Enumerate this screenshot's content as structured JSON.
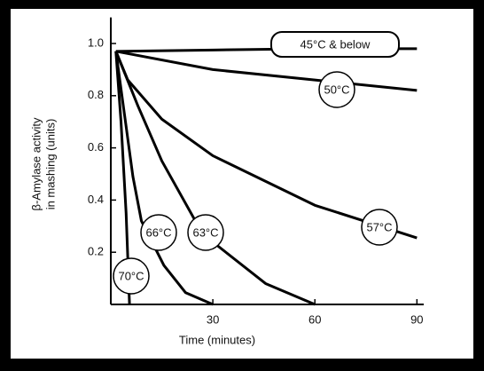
{
  "chart_data": {
    "type": "line",
    "y_label": [
      "β-Amylase activity",
      "in mashing (units)"
    ],
    "x_label": "Time (minutes)",
    "xlim": [
      0,
      92
    ],
    "ylim": [
      0,
      1.1
    ],
    "xticks": [
      30,
      60,
      90
    ],
    "yticks": [
      0.2,
      0.4,
      0.6,
      0.8,
      {
        "value": 1,
        "label": "1.0"
      }
    ],
    "color": "#000000",
    "series": [
      {
        "name": "45°C & below",
        "x": [
          1.5,
          30,
          60,
          90
        ],
        "values": [
          0.97,
          0.975,
          0.98,
          0.98
        ]
      },
      {
        "name": "50°C",
        "x": [
          1.5,
          30,
          60,
          90
        ],
        "values": [
          0.97,
          0.9,
          0.86,
          0.82
        ]
      },
      {
        "name": "57°C",
        "x": [
          1.5,
          5,
          15,
          30,
          60,
          90
        ],
        "values": [
          0.97,
          0.86,
          0.71,
          0.57,
          0.38,
          0.255
        ]
      },
      {
        "name": "63°C",
        "x": [
          1.5,
          8,
          15,
          27,
          45.5,
          60
        ],
        "values": [
          0.97,
          0.76,
          0.55,
          0.27,
          0.08,
          0
        ]
      },
      {
        "name": "66°C",
        "x": [
          1.5,
          6.5,
          9,
          15.6,
          22,
          30
        ],
        "values": [
          0.97,
          0.49,
          0.32,
          0.15,
          0.045,
          0
        ]
      },
      {
        "name": "70°C",
        "x": [
          1.5,
          3,
          4.5,
          5.5
        ],
        "values": [
          0.97,
          0.7,
          0.35,
          0
        ]
      }
    ]
  }
}
